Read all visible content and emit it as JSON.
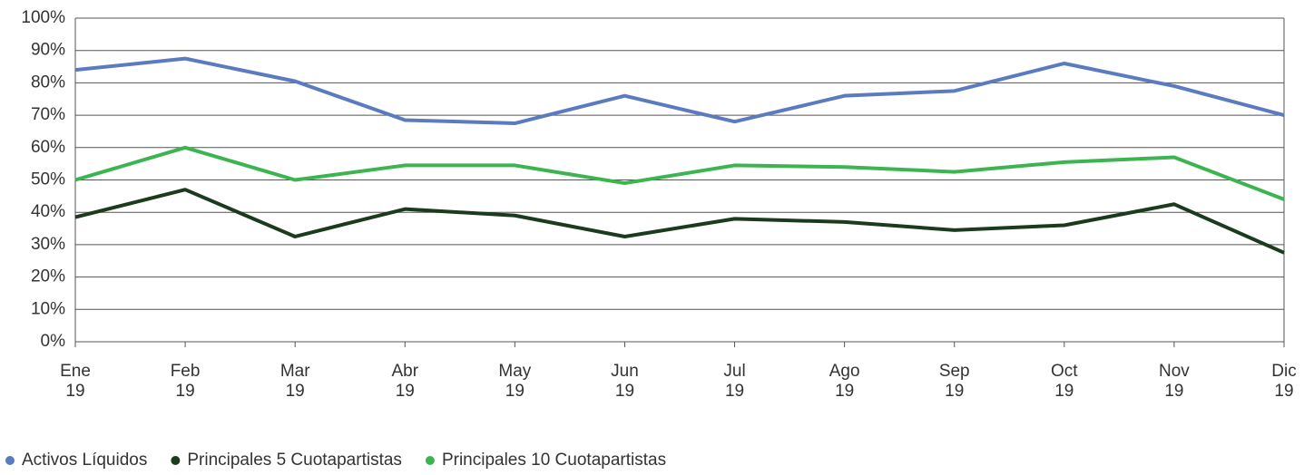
{
  "chart_data": {
    "type": "line",
    "categories": [
      [
        "Ene",
        "19"
      ],
      [
        "Feb",
        "19"
      ],
      [
        "Mar",
        "19"
      ],
      [
        "Abr",
        "19"
      ],
      [
        "May",
        "19"
      ],
      [
        "Jun",
        "19"
      ],
      [
        "Jul",
        "19"
      ],
      [
        "Ago",
        "19"
      ],
      [
        "Sep",
        "19"
      ],
      [
        "Oct",
        "19"
      ],
      [
        "Nov",
        "19"
      ],
      [
        "Dic",
        "19"
      ]
    ],
    "series": [
      {
        "name": "Activos Líquidos",
        "color": "#5b7bc0",
        "values": [
          84,
          87.5,
          80.5,
          68.5,
          67.5,
          76,
          68,
          76,
          77.5,
          86,
          79,
          70
        ]
      },
      {
        "name": "Principales 5 Cuotapartistas",
        "color": "#1b3a1e",
        "values": [
          38.5,
          47,
          32.5,
          41,
          39,
          32.5,
          38,
          37,
          34.5,
          36,
          42.5,
          27.5
        ]
      },
      {
        "name": "Principales 10 Cuotapartistas",
        "color": "#3cb550",
        "values": [
          50,
          60,
          50,
          54.5,
          54.5,
          49,
          54.5,
          54,
          52.5,
          55.5,
          57,
          44
        ]
      }
    ],
    "ylim": [
      0,
      100
    ],
    "yticks": [
      {
        "value": 0,
        "label": "0%"
      },
      {
        "value": 10,
        "label": "10%"
      },
      {
        "value": 20,
        "label": "20%"
      },
      {
        "value": 30,
        "label": "30%"
      },
      {
        "value": 40,
        "label": "40%"
      },
      {
        "value": 50,
        "label": "50%"
      },
      {
        "value": 60,
        "label": "60%"
      },
      {
        "value": 70,
        "label": "70%"
      },
      {
        "value": 80,
        "label": "80%"
      },
      {
        "value": 90,
        "label": "90%"
      },
      {
        "value": 100,
        "label": "100%"
      }
    ],
    "grid": true,
    "legend": "bottom"
  }
}
